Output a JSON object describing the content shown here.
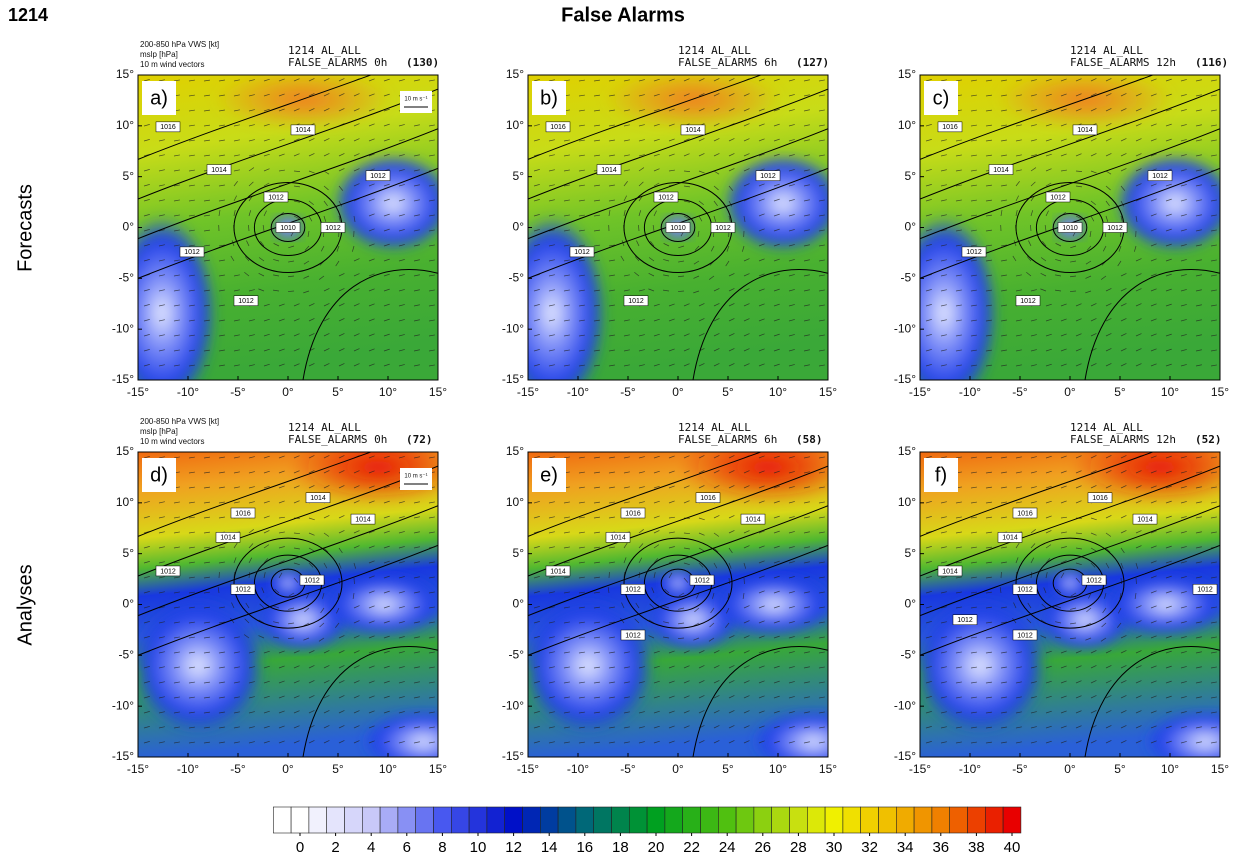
{
  "figure": {
    "case_id": "1214",
    "title": "False Alarms",
    "row_labels": [
      "Forecasts",
      "Analyses"
    ],
    "field_labels": [
      "200-850 hPa VWS [kt]",
      "mslp [hPa]",
      "10 m wind vectors"
    ],
    "vector_scale": "10 m s⁻¹",
    "panels": [
      {
        "letter": "a)",
        "name": "1214 AL_ALL",
        "lead": "FALSE_ALARMS 0h",
        "count": "(130)",
        "contours": [
          "1016",
          "1014",
          "1014",
          "1012",
          "1010",
          "1012",
          "1012",
          "1012",
          "1012"
        ]
      },
      {
        "letter": "b)",
        "name": "1214 AL_ALL",
        "lead": "FALSE_ALARMS 6h",
        "count": "(127)",
        "contours": [
          "1016",
          "1014",
          "1014",
          "1012",
          "1010",
          "1012",
          "1012",
          "1012",
          "1012"
        ]
      },
      {
        "letter": "c)",
        "name": "1214 AL_ALL",
        "lead": "FALSE_ALARMS 12h",
        "count": "(116)",
        "contours": [
          "1016",
          "1014",
          "1014",
          "1012",
          "1010",
          "1012",
          "1012",
          "1012",
          "1012"
        ]
      },
      {
        "letter": "d)",
        "name": "1214 AL_ALL",
        "lead": "FALSE_ALARMS 0h",
        "count": "(72)",
        "contours": [
          "1016",
          "1014",
          "1014",
          "1014",
          "1012",
          "1012",
          "1012"
        ]
      },
      {
        "letter": "e)",
        "name": "1214 AL_ALL",
        "lead": "FALSE_ALARMS 6h",
        "count": "(58)",
        "contours": [
          "1016",
          "1016",
          "1014",
          "1014",
          "1014",
          "1012",
          "1012",
          "1012"
        ]
      },
      {
        "letter": "f)",
        "name": "1214 AL_ALL",
        "lead": "FALSE_ALARMS 12h",
        "count": "(52)",
        "contours": [
          "1016",
          "1016",
          "1014",
          "1014",
          "1014",
          "1012",
          "1012",
          "1012",
          "1012",
          "1012"
        ]
      }
    ],
    "axis": {
      "lim": [
        -15,
        15
      ],
      "ticks": [
        {
          "value": -15,
          "label": "-15°"
        },
        {
          "value": -10,
          "label": "-10°"
        },
        {
          "value": -5,
          "label": "-5°"
        },
        {
          "value": 0,
          "label": "0°"
        },
        {
          "value": 5,
          "label": "5°"
        },
        {
          "value": 10,
          "label": "10°"
        },
        {
          "value": 15,
          "label": "15°"
        }
      ]
    },
    "colorbar": {
      "lim": [
        0,
        40
      ],
      "ticks": [
        0,
        2,
        4,
        6,
        8,
        10,
        12,
        14,
        16,
        18,
        20,
        22,
        24,
        26,
        28,
        30,
        32,
        34,
        36,
        38,
        40
      ]
    }
  }
}
